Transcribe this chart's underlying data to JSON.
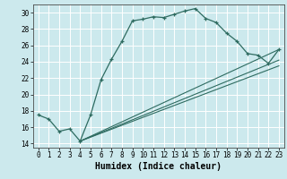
{
  "xlabel": "Humidex (Indice chaleur)",
  "bg_color": "#cce9ed",
  "grid_color": "#ffffff",
  "line_color": "#2e6b60",
  "xlim": [
    -0.5,
    23.5
  ],
  "ylim": [
    13.5,
    31.0
  ],
  "xticks": [
    0,
    1,
    2,
    3,
    4,
    5,
    6,
    7,
    8,
    9,
    10,
    11,
    12,
    13,
    14,
    15,
    16,
    17,
    18,
    19,
    20,
    21,
    22,
    23
  ],
  "yticks": [
    14,
    16,
    18,
    20,
    22,
    24,
    26,
    28,
    30
  ],
  "series": [
    [
      0,
      17.5
    ],
    [
      1,
      17.0
    ],
    [
      2,
      15.5
    ],
    [
      3,
      15.8
    ],
    [
      4,
      14.3
    ],
    [
      5,
      17.5
    ],
    [
      6,
      21.8
    ],
    [
      7,
      24.3
    ],
    [
      8,
      26.5
    ],
    [
      9,
      29.0
    ],
    [
      10,
      29.2
    ],
    [
      11,
      29.5
    ],
    [
      12,
      29.4
    ],
    [
      13,
      29.8
    ],
    [
      14,
      30.2
    ],
    [
      15,
      30.5
    ],
    [
      16,
      29.3
    ],
    [
      17,
      28.8
    ],
    [
      18,
      27.5
    ],
    [
      19,
      26.5
    ],
    [
      20,
      25.0
    ],
    [
      21,
      24.8
    ],
    [
      22,
      23.8
    ],
    [
      23,
      25.5
    ]
  ],
  "straight_lines": [
    [
      [
        4,
        14.3
      ],
      [
        23,
        25.5
      ]
    ],
    [
      [
        4,
        14.3
      ],
      [
        23,
        24.2
      ]
    ],
    [
      [
        4,
        14.3
      ],
      [
        23,
        23.5
      ]
    ]
  ]
}
